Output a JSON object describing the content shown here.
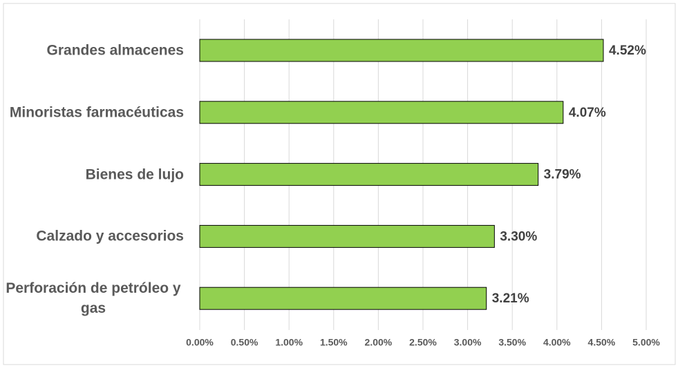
{
  "chart_data": {
    "type": "bar",
    "orientation": "horizontal",
    "categories": [
      "Grandes almacenes",
      "Minoristas farmacéuticas",
      "Bienes de lujo",
      "Calzado y accesorios",
      "Perforación de petróleo y gas"
    ],
    "values": [
      4.52,
      4.07,
      3.79,
      3.3,
      3.21
    ],
    "value_labels": [
      "4.52%",
      "4.07%",
      "3.79%",
      "3.30%",
      "3.21%"
    ],
    "color": "#92d050",
    "xlim": [
      0,
      5
    ],
    "xticks": [
      {
        "value": 0,
        "label": "0.00%"
      },
      {
        "value": 0.5,
        "label": "0.50%"
      },
      {
        "value": 1,
        "label": "1.00%"
      },
      {
        "value": 1.5,
        "label": "1.50%"
      },
      {
        "value": 2,
        "label": "2.00%"
      },
      {
        "value": 2.5,
        "label": "2.50%"
      },
      {
        "value": 3,
        "label": "3.00%"
      },
      {
        "value": 3.5,
        "label": "3.50%"
      },
      {
        "value": 4,
        "label": "4.00%"
      },
      {
        "value": 4.5,
        "label": "4.50%"
      },
      {
        "value": 5,
        "label": "5.00%"
      }
    ],
    "grid": true
  }
}
